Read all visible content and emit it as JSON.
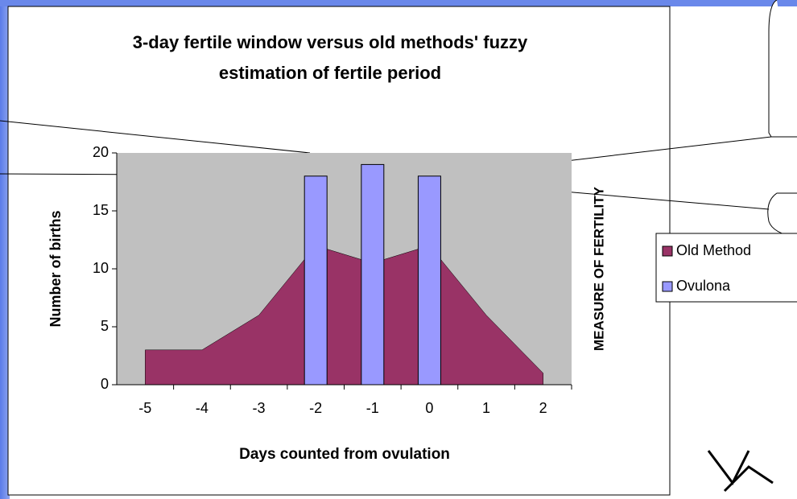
{
  "chart_data": {
    "type": "combo",
    "title": "3-day fertile window versus old methods' fuzzy estimation of fertile period",
    "x_title": "Days counted from ovulation",
    "y_title": "Number of births",
    "y2_title": "MEASURE OF FERTILITY",
    "categories": [
      "-5",
      "-4",
      "-3",
      "-2",
      "-1",
      "0",
      "1",
      "2"
    ],
    "series": [
      {
        "name": "Old Method",
        "type": "area",
        "color": "#993366",
        "values": [
          3,
          3,
          6,
          12,
          10.5,
          12,
          6,
          1
        ]
      },
      {
        "name": "Ovulona",
        "type": "bar",
        "color": "#9999ff",
        "values": [
          null,
          null,
          null,
          18,
          19,
          18,
          null,
          null
        ]
      }
    ],
    "ylim": [
      0,
      20
    ],
    "yticks": [
      0,
      5,
      10,
      15,
      20
    ],
    "plot_background": "#c0c0c0",
    "legend": "right"
  }
}
